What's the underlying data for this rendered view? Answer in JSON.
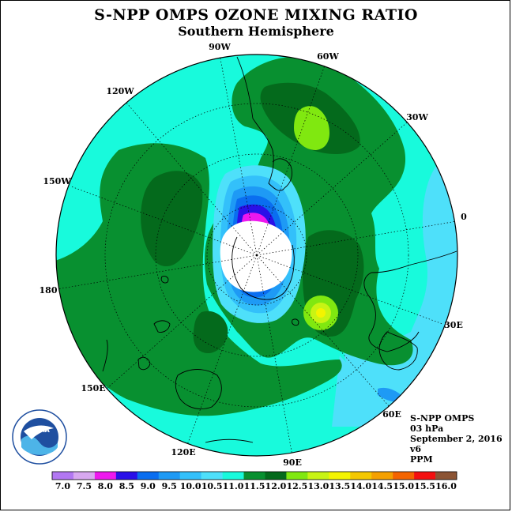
{
  "title": "S-NPP OMPS OZONE MIXING RATIO",
  "subtitle": "Southern Hemisphere",
  "info": {
    "instrument": "S-NPP OMPS",
    "level": "03 hPa",
    "date": "September 2, 2016",
    "version": "v6",
    "unit": "PPM"
  },
  "longitude_labels": [
    "90W",
    "60W",
    "30W",
    "0",
    "30E",
    "60E",
    "90E",
    "120E",
    "150E",
    "180",
    "150W",
    "120W"
  ],
  "logo_text": "NOAA",
  "colorbar": {
    "labels": [
      "7.0",
      "7.5",
      "8.0",
      "8.5",
      "9.0",
      "9.5",
      "10.0",
      "10.5",
      "11.0",
      "11.5",
      "12.0",
      "12.5",
      "13.0",
      "13.5",
      "14.0",
      "14.5",
      "15.0",
      "15.5",
      "16.0"
    ],
    "colors": [
      "#b277f2",
      "#d8a8f0",
      "#ee18ee",
      "#2a10e8",
      "#0a6ef0",
      "#1e9af5",
      "#33c0fa",
      "#4ee0fa",
      "#18fadc",
      "#089030",
      "#046a1c",
      "#80e810",
      "#c8f414",
      "#f4f400",
      "#f4c800",
      "#f4a000",
      "#f46400",
      "#f41010",
      "#8c5434"
    ]
  },
  "colors": {
    "background_field": "#18fadc",
    "polar_night": "#ffffff"
  }
}
